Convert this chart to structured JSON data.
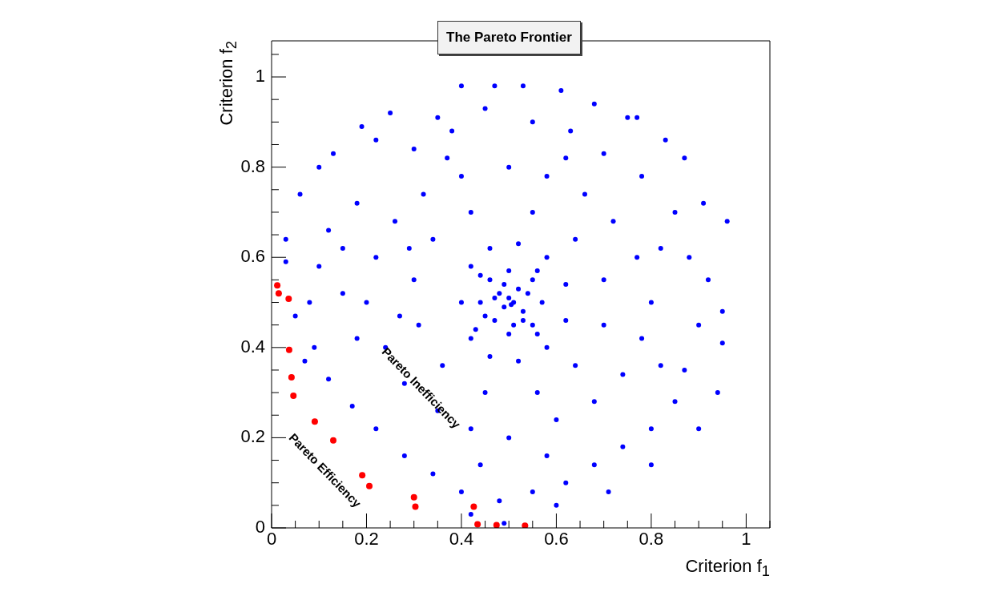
{
  "chart_data": {
    "type": "scatter",
    "title": "The Pareto Frontier",
    "xlabel": "Criterion f$_{1}$",
    "ylabel": "Criterion f$_{2}$",
    "xlim": [
      0,
      1.05
    ],
    "ylim": [
      0,
      1.08
    ],
    "marker": "circle",
    "xticks": [
      0,
      {
        "value": 0.05,
        "label": null
      },
      {
        "value": 0.1,
        "label": null
      },
      {
        "value": 0.15,
        "label": null
      },
      0.2,
      {
        "value": 0.25,
        "label": null
      },
      {
        "value": 0.3,
        "label": null
      },
      {
        "value": 0.35,
        "label": null
      },
      0.4,
      {
        "value": 0.45,
        "label": null
      },
      {
        "value": 0.5,
        "label": null
      },
      {
        "value": 0.55,
        "label": null
      },
      0.6,
      {
        "value": 0.65,
        "label": null
      },
      {
        "value": 0.7,
        "label": null
      },
      {
        "value": 0.75,
        "label": null
      },
      0.8,
      {
        "value": 0.85,
        "label": null
      },
      {
        "value": 0.9,
        "label": null
      },
      {
        "value": 0.95,
        "label": null
      },
      1,
      {
        "value": 1.05,
        "label": null
      }
    ],
    "yticks": [
      0,
      {
        "value": 0.05,
        "label": null
      },
      {
        "value": 0.1,
        "label": null
      },
      {
        "value": 0.15,
        "label": null
      },
      0.2,
      {
        "value": 0.25,
        "label": null
      },
      {
        "value": 0.3,
        "label": null
      },
      {
        "value": 0.35,
        "label": null
      },
      0.4,
      {
        "value": 0.45,
        "label": null
      },
      {
        "value": 0.5,
        "label": null
      },
      {
        "value": 0.55,
        "label": null
      },
      0.6,
      {
        "value": 0.65,
        "label": null
      },
      {
        "value": 0.7,
        "label": null
      },
      {
        "value": 0.75,
        "label": null
      },
      0.8,
      {
        "value": 0.85,
        "label": null
      },
      {
        "value": 0.9,
        "label": null
      },
      {
        "value": 0.95,
        "label": null
      },
      1,
      {
        "value": 1.05,
        "label": null
      }
    ],
    "annotations": [
      "Pareto Efficiency",
      "Pareto Inefficiency"
    ],
    "series": [
      {
        "color": "#0000ff",
        "x": [
          0.4,
          0.47,
          0.53,
          0.61,
          0.35,
          0.25,
          0.19,
          0.68,
          0.75,
          0.77,
          0.83,
          0.87,
          0.1,
          0.13,
          0.06,
          0.91,
          0.96,
          0.03,
          0.03,
          0.95,
          0.95,
          0.94,
          0.9,
          0.8,
          0.71,
          0.6,
          0.49,
          0.42,
          0.05,
          0.07,
          0.12,
          0.18,
          0.22,
          0.3,
          0.38,
          0.45,
          0.55,
          0.63,
          0.7,
          0.78,
          0.85,
          0.88,
          0.92,
          0.9,
          0.87,
          0.85,
          0.8,
          0.74,
          0.68,
          0.62,
          0.55,
          0.48,
          0.4,
          0.34,
          0.28,
          0.22,
          0.17,
          0.12,
          0.09,
          0.08,
          0.1,
          0.15,
          0.2,
          0.22,
          0.26,
          0.32,
          0.4,
          0.5,
          0.58,
          0.66,
          0.72,
          0.77,
          0.8,
          0.78,
          0.74,
          0.68,
          0.6,
          0.5,
          0.42,
          0.35,
          0.28,
          0.24,
          0.3,
          0.34,
          0.42,
          0.55,
          0.64,
          0.7,
          0.7,
          0.64,
          0.56,
          0.45,
          0.36,
          0.31,
          0.27,
          0.29,
          0.37,
          0.62,
          0.82,
          0.82,
          0.44,
          0.58,
          0.18,
          0.15,
          0.4,
          0.42,
          0.46,
          0.52,
          0.58,
          0.62,
          0.62,
          0.58,
          0.52,
          0.46,
          0.42,
          0.44,
          0.46,
          0.5,
          0.55,
          0.57,
          0.55,
          0.5,
          0.47,
          0.48,
          0.52,
          0.53,
          0.49,
          0.51,
          0.5,
          0.505,
          0.45,
          0.54,
          0.47,
          0.53,
          0.49,
          0.51,
          0.44,
          0.56,
          0.56,
          0.43
        ],
        "values": [
          0.98,
          0.98,
          0.98,
          0.97,
          0.91,
          0.92,
          0.89,
          0.94,
          0.91,
          0.91,
          0.86,
          0.82,
          0.8,
          0.83,
          0.74,
          0.72,
          0.68,
          0.59,
          0.64,
          0.48,
          0.41,
          0.3,
          0.22,
          0.14,
          0.08,
          0.05,
          0.01,
          0.03,
          0.47,
          0.37,
          0.66,
          0.72,
          0.86,
          0.84,
          0.88,
          0.93,
          0.9,
          0.88,
          0.83,
          0.78,
          0.7,
          0.6,
          0.55,
          0.45,
          0.35,
          0.28,
          0.22,
          0.18,
          0.14,
          0.1,
          0.08,
          0.06,
          0.08,
          0.12,
          0.16,
          0.22,
          0.27,
          0.33,
          0.4,
          0.5,
          0.58,
          0.62,
          0.5,
          0.6,
          0.68,
          0.74,
          0.78,
          0.8,
          0.78,
          0.74,
          0.68,
          0.6,
          0.5,
          0.42,
          0.34,
          0.28,
          0.24,
          0.2,
          0.22,
          0.26,
          0.32,
          0.4,
          0.55,
          0.64,
          0.7,
          0.7,
          0.64,
          0.55,
          0.45,
          0.36,
          0.3,
          0.3,
          0.36,
          0.45,
          0.47,
          0.62,
          0.82,
          0.82,
          0.36,
          0.62,
          0.14,
          0.16,
          0.42,
          0.52,
          0.5,
          0.58,
          0.62,
          0.63,
          0.6,
          0.54,
          0.46,
          0.4,
          0.37,
          0.38,
          0.42,
          0.5,
          0.55,
          0.57,
          0.55,
          0.5,
          0.45,
          0.43,
          0.46,
          0.52,
          0.53,
          0.48,
          0.49,
          0.5,
          0.51,
          0.495,
          0.47,
          0.52,
          0.51,
          0.46,
          0.54,
          0.45,
          0.56,
          0.57,
          0.43,
          0.44
        ]
      },
      {
        "color": "#ff0000",
        "x": [
          0.012,
          0.015,
          0.036,
          0.037,
          0.042,
          0.046,
          0.091,
          0.13,
          0.191,
          0.206,
          0.3,
          0.303,
          0.426,
          0.434,
          0.474,
          0.534
        ],
        "values": [
          0.538,
          0.52,
          0.508,
          0.395,
          0.334,
          0.293,
          0.236,
          0.194,
          0.117,
          0.093,
          0.068,
          0.047,
          0.047,
          0.008,
          0.006,
          0.005
        ]
      }
    ]
  }
}
